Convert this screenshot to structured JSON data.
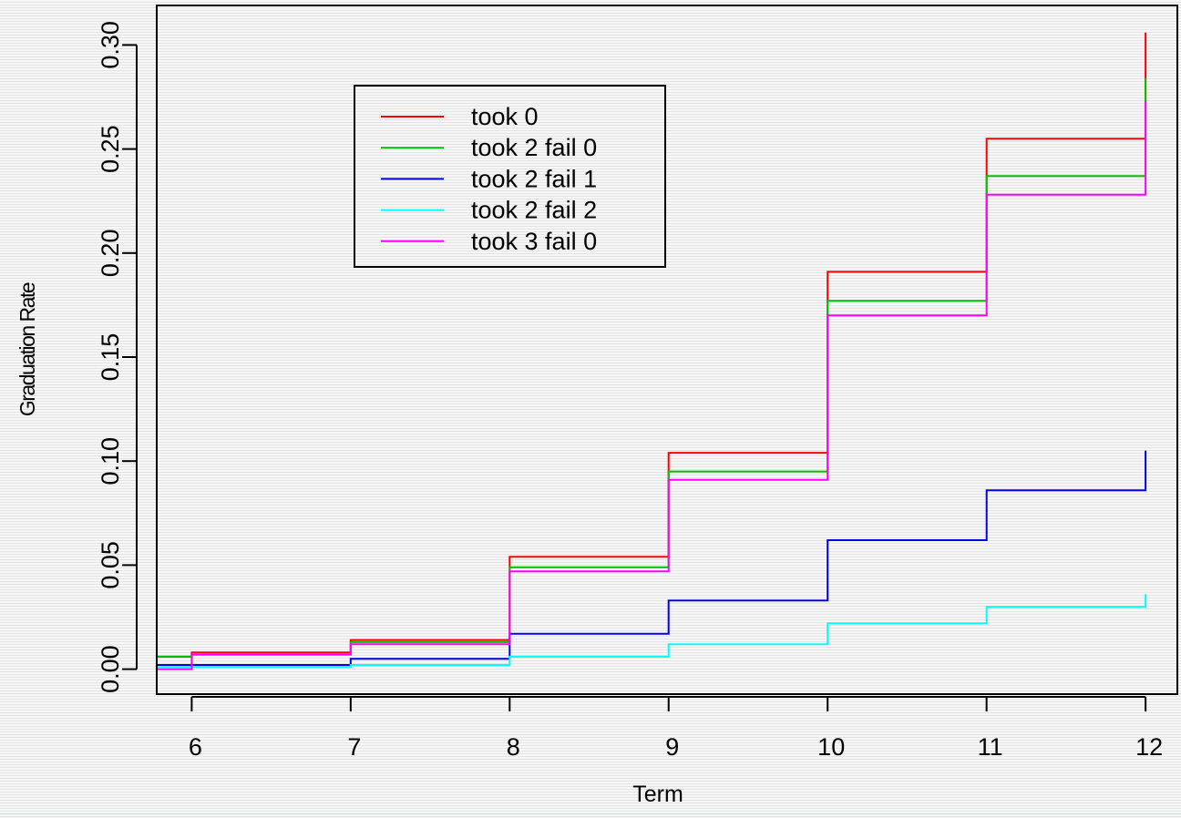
{
  "chart_data": {
    "type": "line",
    "step": true,
    "title": "",
    "xlabel": "Term",
    "ylabel": "Graduation Rate",
    "xlim": [
      5.78,
      12.2
    ],
    "ylim": [
      -0.012,
      0.319
    ],
    "xticks": [
      6,
      7,
      8,
      9,
      10,
      11,
      12
    ],
    "xtick_labels": [
      "6",
      "7",
      "8",
      "9",
      "10",
      "11",
      "12"
    ],
    "yticks": [
      0.0,
      0.05,
      0.1,
      0.15,
      0.2,
      0.25,
      0.3
    ],
    "ytick_labels": [
      "0.00",
      "0.05",
      "0.10",
      "0.15",
      "0.20",
      "0.25",
      "0.30"
    ],
    "grid": false,
    "legend_position": "top-left",
    "series": [
      {
        "name": "took 0",
        "color": "#ff0000",
        "x": [
          5.78,
          6,
          7,
          8,
          9,
          10,
          11,
          12
        ],
        "y": [
          0.006,
          0.008,
          0.014,
          0.054,
          0.104,
          0.191,
          0.255,
          0.306
        ]
      },
      {
        "name": "took 2 fail 0",
        "color": "#00c000",
        "x": [
          5.78,
          6,
          7,
          8,
          9,
          10,
          11,
          12
        ],
        "y": [
          0.006,
          0.007,
          0.013,
          0.049,
          0.095,
          0.177,
          0.237,
          0.284
        ]
      },
      {
        "name": "took 2 fail 1",
        "color": "#0000ee",
        "x": [
          5.78,
          6,
          7,
          8,
          9,
          10,
          11,
          12
        ],
        "y": [
          0.002,
          0.002,
          0.005,
          0.017,
          0.033,
          0.062,
          0.086,
          0.105
        ]
      },
      {
        "name": "took 2 fail 2",
        "color": "#00ffff",
        "x": [
          5.78,
          6,
          7,
          8,
          9,
          10,
          11,
          12
        ],
        "y": [
          0.001,
          0.001,
          0.002,
          0.006,
          0.012,
          0.022,
          0.03,
          0.036
        ]
      },
      {
        "name": "took 3 fail 0",
        "color": "#ff00ff",
        "x": [
          5.78,
          6,
          7,
          8,
          9,
          10,
          11,
          12
        ],
        "y": [
          0.0,
          0.007,
          0.012,
          0.047,
          0.091,
          0.17,
          0.228,
          0.273
        ]
      }
    ]
  }
}
